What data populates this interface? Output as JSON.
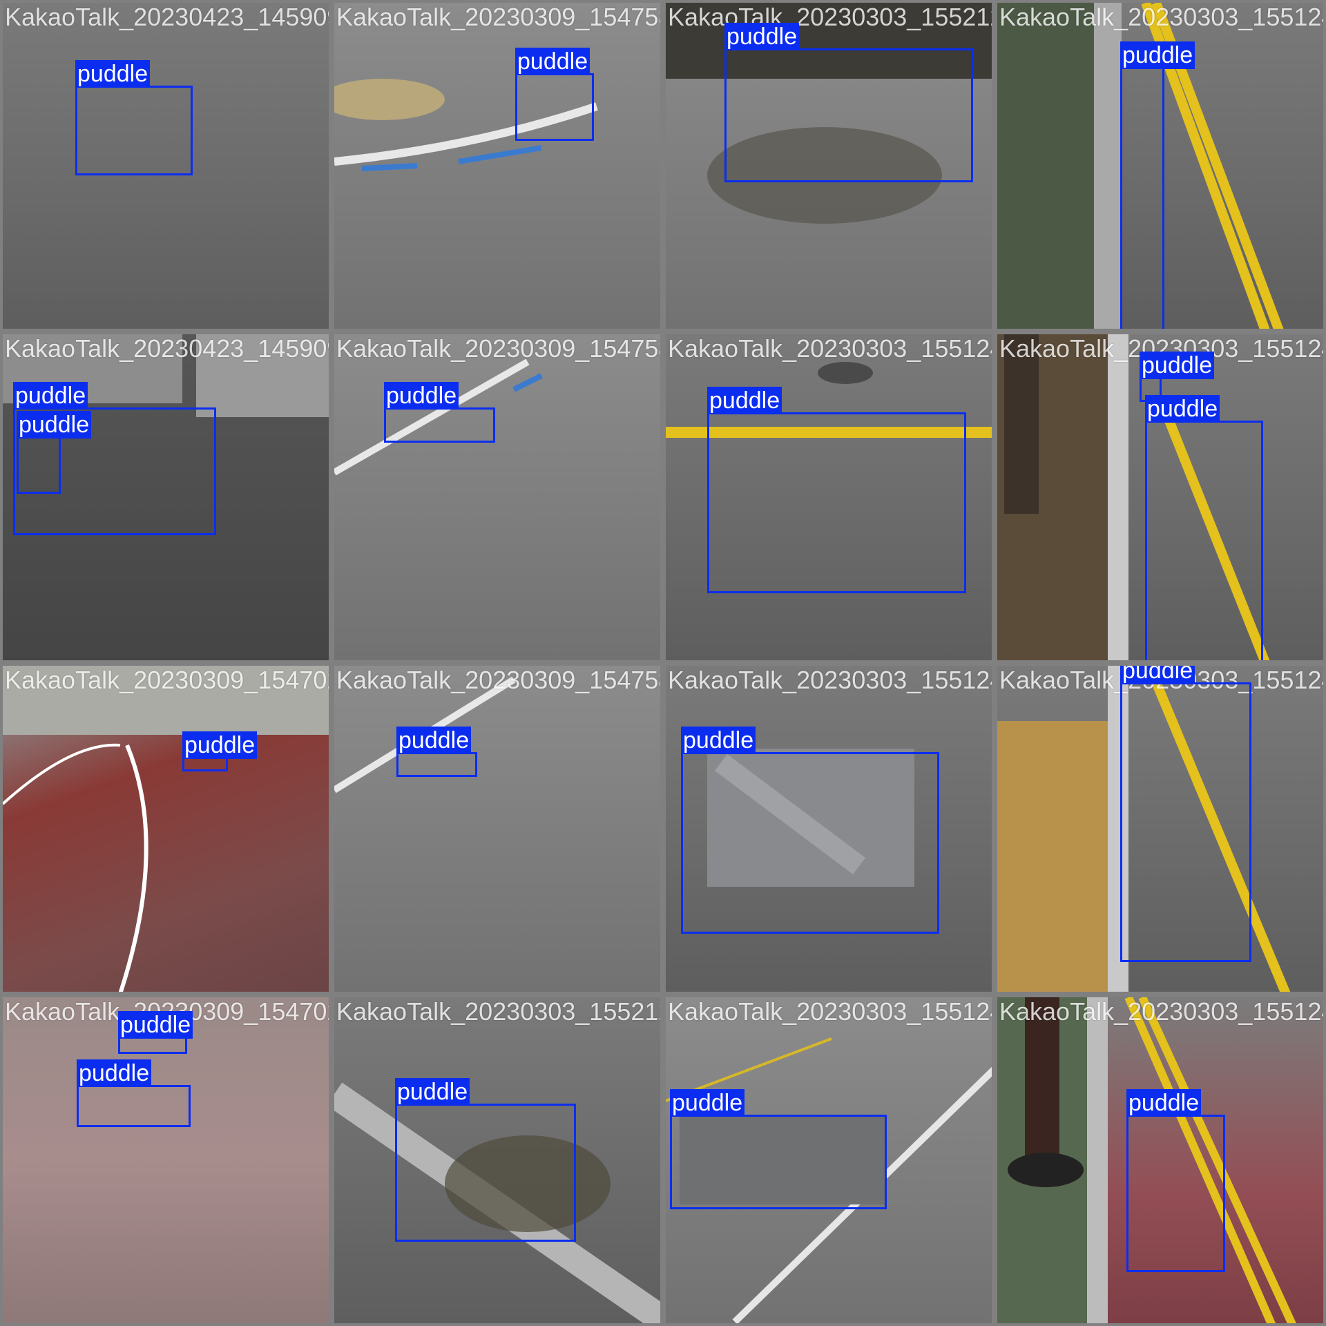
{
  "bbox_color": "#0b2df0",
  "tiles": [
    {
      "filename": "KakaoTalk_20230423_145909145_02.jpg",
      "labels": [
        "puddle"
      ]
    },
    {
      "filename": "KakaoTalk_20230309_154758651_04.jpg",
      "labels": [
        "puddle"
      ]
    },
    {
      "filename": "KakaoTalk_20230303_155212159_01.jpg",
      "labels": [
        "puddle"
      ]
    },
    {
      "filename": "KakaoTalk_20230303_155124767_01.jpg",
      "labels": [
        "puddle"
      ]
    },
    {
      "filename": "KakaoTalk_20230423_145909145_01.jpg",
      "labels": [
        "puddle",
        "puddle"
      ]
    },
    {
      "filename": "KakaoTalk_20230309_154758651_04.jpg",
      "labels": [
        "puddle"
      ]
    },
    {
      "filename": "KakaoTalk_20230303_155124767_01.jpg",
      "labels": [
        "puddle"
      ]
    },
    {
      "filename": "KakaoTalk_20230303_155124767_01.jpg",
      "labels": [
        "puddle",
        "puddle"
      ]
    },
    {
      "filename": "KakaoTalk_20230309_154702_07.jpg",
      "labels": [
        "puddle"
      ]
    },
    {
      "filename": "KakaoTalk_20230309_154758651_04.jpg",
      "labels": [
        "puddle"
      ]
    },
    {
      "filename": "KakaoTalk_20230303_155124767_01.jpg",
      "labels": [
        "puddle"
      ]
    },
    {
      "filename": "KakaoTalk_20230303_155124767_01.jpg",
      "labels": [
        "puddle"
      ]
    },
    {
      "filename": "KakaoTalk_20230309_154702_07.jpg",
      "labels": [
        "puddle",
        "puddle"
      ]
    },
    {
      "filename": "KakaoTalk_20230303_155212159_01.jpg",
      "labels": [
        "puddle"
      ]
    },
    {
      "filename": "KakaoTalk_20230303_155124767_01.jpg",
      "labels": [
        "puddle"
      ]
    },
    {
      "filename": "KakaoTalk_20230303_155124767_01.jpg",
      "labels": [
        "puddle"
      ]
    }
  ]
}
